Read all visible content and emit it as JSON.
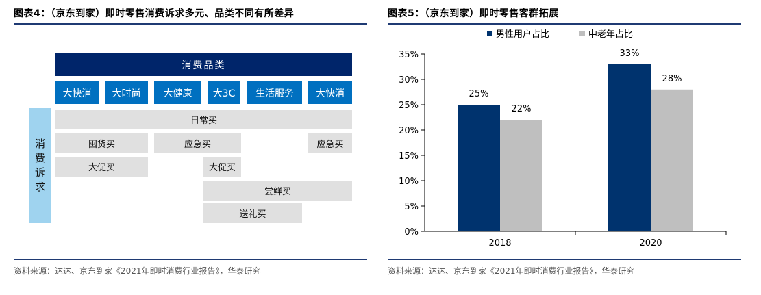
{
  "left_panel": {
    "title": "图表4：（京东到家）即时零售消费诉求多元、品类不同有所差异",
    "source": "资料来源：达达、京东到家《2021年即时消费行业报告》，华泰研究",
    "header": "消费品类",
    "categories": [
      "大快消",
      "大时尚",
      "大健康",
      "大3C",
      "生活服务",
      "大快消"
    ],
    "side_label": [
      "消",
      "费",
      "诉",
      "求"
    ],
    "needs": {
      "daily": "日常买",
      "stock_up": "囤货买",
      "emergency_1": "应急买",
      "emergency_2": "应急买",
      "promo_1": "大促买",
      "promo_2": "大促买",
      "try_new": "尝鲜买",
      "gift": "送礼买"
    }
  },
  "right_panel": {
    "title": "图表5：（京东到家）即时零售客群拓展",
    "source": "资料来源：达达、京东到家《2021年即时消费行业报告》，华泰研究"
  },
  "chart_data": {
    "type": "bar",
    "categories": [
      "2018",
      "2020"
    ],
    "series": [
      {
        "name": "男性用户占比",
        "values": [
          25,
          33
        ],
        "color": "#00336e"
      },
      {
        "name": "中老年占比",
        "values": [
          22,
          28
        ],
        "color": "#bfbfbf"
      }
    ],
    "data_labels": [
      [
        "25%",
        "33%"
      ],
      [
        "22%",
        "28%"
      ]
    ],
    "ylim": [
      0,
      35
    ],
    "yticks": [
      "0%",
      "5%",
      "10%",
      "15%",
      "20%",
      "25%",
      "30%",
      "35%"
    ],
    "legend_position": "top",
    "grid": false
  }
}
